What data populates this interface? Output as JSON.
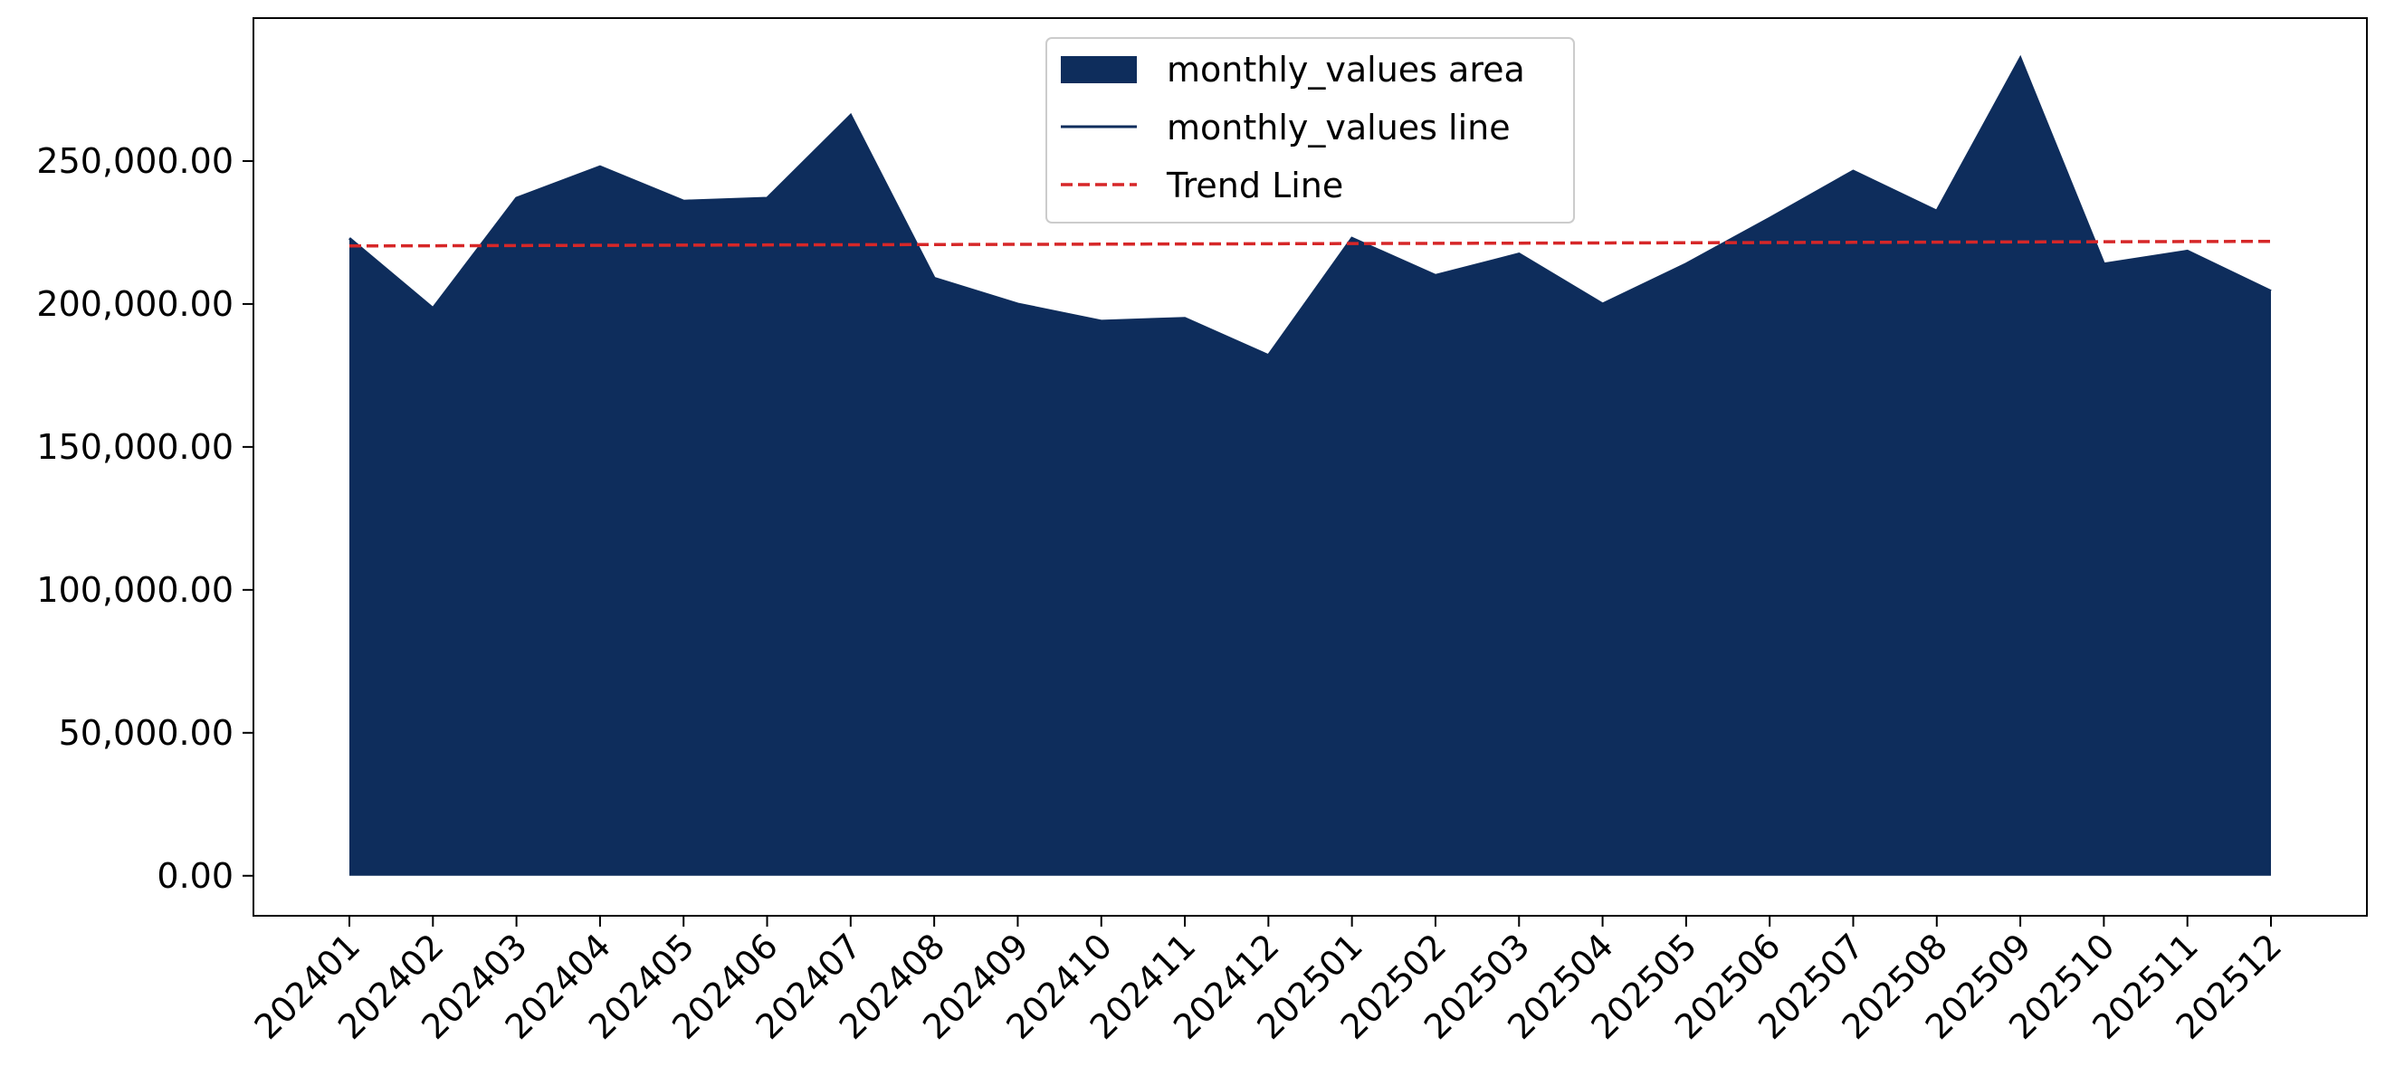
{
  "chart_data": {
    "type": "area",
    "categories": [
      "202401",
      "202402",
      "202403",
      "202404",
      "202405",
      "202406",
      "202407",
      "202408",
      "202409",
      "202410",
      "202411",
      "202412",
      "202501",
      "202502",
      "202503",
      "202504",
      "202505",
      "202506",
      "202507",
      "202508",
      "202509",
      "202510",
      "202511",
      "202512"
    ],
    "series": [
      {
        "name": "monthly_values area",
        "kind": "area",
        "color": "#0e2d5c",
        "values": [
          223000,
          198500,
          237000,
          248000,
          236000,
          237000,
          266000,
          209000,
          200000,
          194000,
          195000,
          182000,
          223000,
          210000,
          217500,
          200000,
          214000,
          230000,
          246500,
          232500,
          286000,
          214000,
          218500,
          204500
        ]
      },
      {
        "name": "monthly_values line",
        "kind": "line",
        "color": "#0e2d5c",
        "values": [
          223000,
          198500,
          237000,
          248000,
          236000,
          237000,
          266000,
          209000,
          200000,
          194000,
          195000,
          182000,
          223000,
          210000,
          217500,
          200000,
          214000,
          230000,
          246500,
          232500,
          286000,
          214000,
          218500,
          204500
        ]
      },
      {
        "name": "Trend Line",
        "kind": "line-dashed",
        "color": "#d62728",
        "values": [
          220300,
          220370,
          220440,
          220510,
          220580,
          220650,
          220720,
          220790,
          220860,
          220930,
          221000,
          221070,
          221140,
          221210,
          221280,
          221350,
          221420,
          221490,
          221560,
          221630,
          221700,
          221770,
          221840,
          221910
        ]
      }
    ],
    "yticks": [
      "0.00",
      "50,000.00",
      "100,000.00",
      "150,000.00",
      "200,000.00",
      "250,000.00"
    ],
    "ytick_values": [
      0,
      50000,
      100000,
      150000,
      200000,
      250000
    ],
    "ylim": [
      -14000,
      300000
    ],
    "grid": false,
    "legend_position": "upper-center",
    "title": "",
    "xlabel": "",
    "ylabel": ""
  }
}
